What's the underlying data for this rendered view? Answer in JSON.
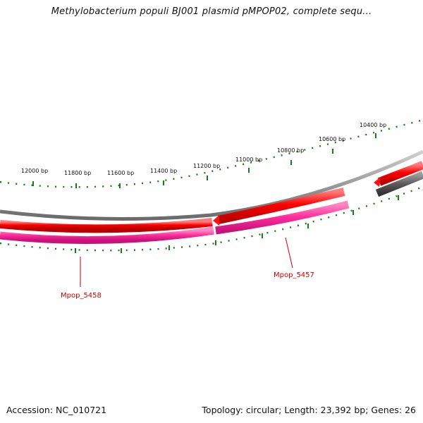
{
  "title": "Methylobacterium populi BJ001 plasmid pMPOP02, complete sequ...",
  "footer": {
    "accession": "Accession: NC_010721",
    "stats": "Topology: circular; Length: 23,392 bp; Genes: 26"
  },
  "ticks": [
    {
      "label": "12000 bp",
      "bp": 12000
    },
    {
      "label": "11800 bp",
      "bp": 11800
    },
    {
      "label": "11600 bp",
      "bp": 11600
    },
    {
      "label": "11400 bp",
      "bp": 11400
    },
    {
      "label": "11200 bp",
      "bp": 11200
    },
    {
      "label": "11000 bp",
      "bp": 11000
    },
    {
      "label": "10800 bp",
      "bp": 10800
    },
    {
      "label": "10600 bp",
      "bp": 10600
    },
    {
      "label": "10400 bp",
      "bp": 10400
    }
  ],
  "genes": [
    {
      "name": "Mpop_5458"
    },
    {
      "name": "Mpop_5457"
    }
  ],
  "colors": {
    "gene_forward": "#ee1111",
    "cds_track": "#ff3399",
    "backbone": "#888888",
    "dark_segment": "#555555",
    "tick": "#1a7a1a",
    "label": "#cc0000"
  }
}
